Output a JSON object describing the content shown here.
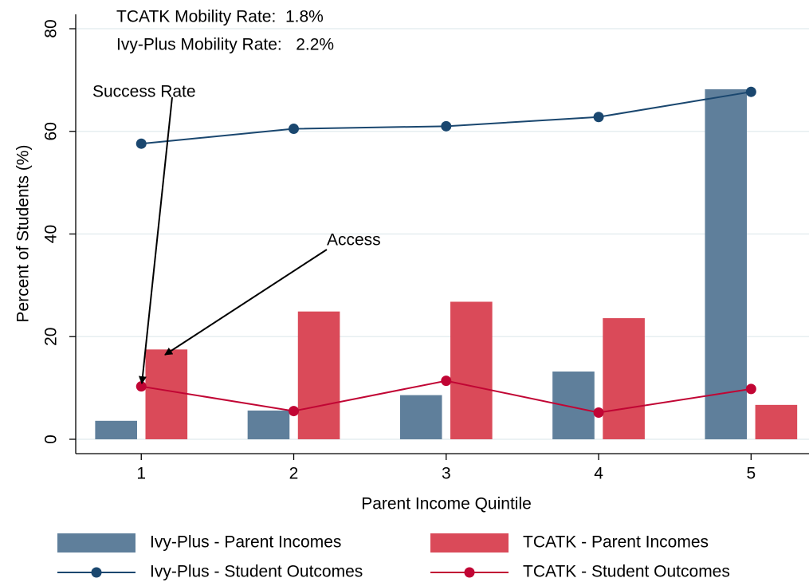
{
  "chart_data": {
    "type": "combo",
    "x_label": "Parent Income Quintile",
    "y_label": "Percent of Students (%)",
    "x": [
      1,
      2,
      3,
      4,
      5
    ],
    "xlim": [
      0.57,
      5.38
    ],
    "xticks": [
      1,
      2,
      3,
      4,
      5
    ],
    "ylim": [
      -2.8,
      82.8
    ],
    "yticks": [
      0,
      20,
      40,
      60,
      80
    ],
    "grid": true,
    "annotations": [
      "TCATK Mobility Rate:  1.8%",
      "Ivy-Plus Mobility Rate:   2.2%",
      "Success Rate",
      "Access"
    ],
    "series": [
      {
        "name": "Ivy-Plus - Parent Incomes",
        "type": "bar",
        "color": "#5f7f9b",
        "values": [
          3.6,
          5.6,
          8.6,
          13.2,
          68.2
        ]
      },
      {
        "name": "TCATK - Parent Incomes",
        "type": "bar",
        "color": "#da4a59",
        "values": [
          17.5,
          24.9,
          26.8,
          23.6,
          6.7
        ]
      },
      {
        "name": "Ivy-Plus - Student Outcomes",
        "type": "line",
        "color": "#1a476f",
        "values": [
          57.6,
          60.5,
          61.0,
          62.8,
          67.7
        ]
      },
      {
        "name": "TCATK - Student Outcomes",
        "type": "line",
        "color": "#c10534",
        "values": [
          10.3,
          5.5,
          11.4,
          5.2,
          9.8
        ]
      }
    ]
  }
}
